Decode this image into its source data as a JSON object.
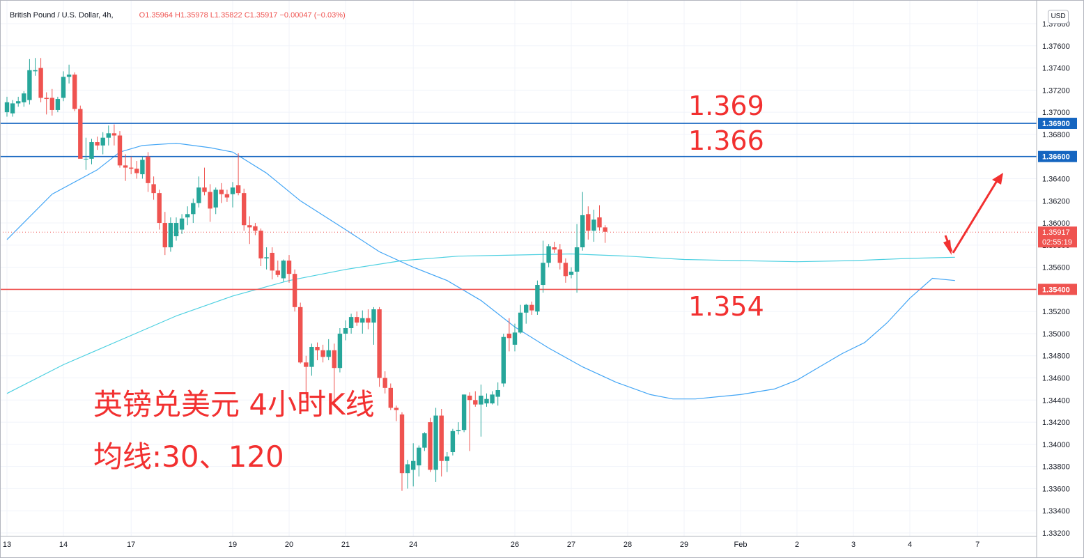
{
  "header": {
    "symbol": "British Pound / U.S. Dollar, 4h,",
    "ohlc": "O1.35964 H1.35978 L1.35822 C1.35917 −0.00047 (−0.03%)"
  },
  "currency_label": "USD",
  "colors": {
    "up": "#26a69a",
    "down": "#ef5350",
    "ma30": "#42a5f5",
    "ma120": "#4dd0e1",
    "resistance": "#1565c0",
    "support": "#ef5350",
    "annotation": "#f23030",
    "grid": "#f0f3fa"
  },
  "chart_data": {
    "type": "candlestick",
    "symbol": "GBP/USD",
    "interval": "4h",
    "y_axis": {
      "range": [
        1.332,
        1.378
      ],
      "ticks": [
        "1.37800",
        "1.37600",
        "1.37400",
        "1.37200",
        "1.37000",
        "1.36800",
        "1.36600",
        "1.36400",
        "1.36200",
        "1.36000",
        "1.35800",
        "1.35600",
        "1.35400",
        "1.35200",
        "1.35000",
        "1.34800",
        "1.34600",
        "1.34400",
        "1.34200",
        "1.34000",
        "1.33800",
        "1.33600",
        "1.33400",
        "1.33200"
      ],
      "tick_values": [
        1.378,
        1.376,
        1.374,
        1.372,
        1.37,
        1.368,
        1.366,
        1.364,
        1.362,
        1.36,
        1.358,
        1.356,
        1.354,
        1.352,
        1.35,
        1.348,
        1.346,
        1.344,
        1.342,
        1.34,
        1.338,
        1.336,
        1.334,
        1.332
      ]
    },
    "x_axis": {
      "labels": [
        "13",
        "14",
        "17",
        "19",
        "20",
        "21",
        "24",
        "26",
        "27",
        "28",
        "29",
        "Feb",
        "2",
        "3",
        "4",
        "7"
      ],
      "label_bars": [
        0,
        10,
        22,
        40,
        50,
        60,
        72,
        90,
        100,
        110,
        120,
        130,
        140,
        150,
        160,
        172
      ]
    },
    "candles": [
      {
        "o": 1.37,
        "h": 1.3714,
        "l": 1.3696,
        "c": 1.3709
      },
      {
        "o": 1.3699,
        "h": 1.3711,
        "l": 1.3696,
        "c": 1.3708
      },
      {
        "o": 1.3708,
        "h": 1.3714,
        "l": 1.3705,
        "c": 1.371
      },
      {
        "o": 1.3709,
        "h": 1.3719,
        "l": 1.3705,
        "c": 1.3717
      },
      {
        "o": 1.3711,
        "h": 1.3748,
        "l": 1.3707,
        "c": 1.3738
      },
      {
        "o": 1.3737,
        "h": 1.3749,
        "l": 1.3733,
        "c": 1.3738
      },
      {
        "o": 1.374,
        "h": 1.3749,
        "l": 1.3709,
        "c": 1.3713
      },
      {
        "o": 1.3713,
        "h": 1.3718,
        "l": 1.3698,
        "c": 1.3712
      },
      {
        "o": 1.3713,
        "h": 1.3721,
        "l": 1.3697,
        "c": 1.3702
      },
      {
        "o": 1.3702,
        "h": 1.3714,
        "l": 1.37,
        "c": 1.3712
      },
      {
        "o": 1.3713,
        "h": 1.3737,
        "l": 1.371,
        "c": 1.3732
      },
      {
        "o": 1.3732,
        "h": 1.3743,
        "l": 1.3726,
        "c": 1.3734
      },
      {
        "o": 1.3734,
        "h": 1.3736,
        "l": 1.3701,
        "c": 1.3703
      },
      {
        "o": 1.3703,
        "h": 1.3706,
        "l": 1.366,
        "c": 1.3658
      },
      {
        "o": 1.3658,
        "h": 1.3677,
        "l": 1.3648,
        "c": 1.3658
      },
      {
        "o": 1.3658,
        "h": 1.3676,
        "l": 1.3653,
        "c": 1.3673
      },
      {
        "o": 1.3673,
        "h": 1.3678,
        "l": 1.3666,
        "c": 1.367
      },
      {
        "o": 1.367,
        "h": 1.3682,
        "l": 1.3662,
        "c": 1.3677
      },
      {
        "o": 1.3677,
        "h": 1.3688,
        "l": 1.367,
        "c": 1.3681
      },
      {
        "o": 1.3681,
        "h": 1.3689,
        "l": 1.367,
        "c": 1.3679
      },
      {
        "o": 1.3679,
        "h": 1.3683,
        "l": 1.365,
        "c": 1.3652
      },
      {
        "o": 1.3652,
        "h": 1.3662,
        "l": 1.3638,
        "c": 1.365
      },
      {
        "o": 1.365,
        "h": 1.366,
        "l": 1.3644,
        "c": 1.3649
      },
      {
        "o": 1.3649,
        "h": 1.3656,
        "l": 1.364,
        "c": 1.3645
      },
      {
        "o": 1.3644,
        "h": 1.366,
        "l": 1.364,
        "c": 1.3657
      },
      {
        "o": 1.366,
        "h": 1.3664,
        "l": 1.3628,
        "c": 1.3636
      },
      {
        "o": 1.3635,
        "h": 1.3642,
        "l": 1.3621,
        "c": 1.3627
      },
      {
        "o": 1.3627,
        "h": 1.363,
        "l": 1.3594,
        "c": 1.36
      },
      {
        "o": 1.36,
        "h": 1.361,
        "l": 1.3571,
        "c": 1.3578
      },
      {
        "o": 1.3578,
        "h": 1.3605,
        "l": 1.3574,
        "c": 1.36
      },
      {
        "o": 1.3588,
        "h": 1.3605,
        "l": 1.3584,
        "c": 1.36
      },
      {
        "o": 1.3594,
        "h": 1.3608,
        "l": 1.359,
        "c": 1.3604
      },
      {
        "o": 1.3605,
        "h": 1.3615,
        "l": 1.3598,
        "c": 1.3608
      },
      {
        "o": 1.3608,
        "h": 1.3622,
        "l": 1.36,
        "c": 1.3618
      },
      {
        "o": 1.3618,
        "h": 1.3642,
        "l": 1.3614,
        "c": 1.3632
      },
      {
        "o": 1.3632,
        "h": 1.365,
        "l": 1.3625,
        "c": 1.3628
      },
      {
        "o": 1.3628,
        "h": 1.3635,
        "l": 1.3601,
        "c": 1.3613
      },
      {
        "o": 1.3614,
        "h": 1.3632,
        "l": 1.3608,
        "c": 1.363
      },
      {
        "o": 1.363,
        "h": 1.3636,
        "l": 1.3618,
        "c": 1.3626
      },
      {
        "o": 1.3626,
        "h": 1.363,
        "l": 1.3619,
        "c": 1.3623
      },
      {
        "o": 1.3626,
        "h": 1.3637,
        "l": 1.3614,
        "c": 1.3632
      },
      {
        "o": 1.3634,
        "h": 1.3663,
        "l": 1.3625,
        "c": 1.3627
      },
      {
        "o": 1.3627,
        "h": 1.3631,
        "l": 1.3593,
        "c": 1.3598
      },
      {
        "o": 1.3598,
        "h": 1.3606,
        "l": 1.3581,
        "c": 1.3596
      },
      {
        "o": 1.3597,
        "h": 1.36,
        "l": 1.3589,
        "c": 1.3593
      },
      {
        "o": 1.3593,
        "h": 1.3595,
        "l": 1.3561,
        "c": 1.3568
      },
      {
        "o": 1.3568,
        "h": 1.3578,
        "l": 1.3558,
        "c": 1.3569
      },
      {
        "o": 1.3573,
        "h": 1.3578,
        "l": 1.3549,
        "c": 1.3557
      },
      {
        "o": 1.3557,
        "h": 1.3566,
        "l": 1.3551,
        "c": 1.3553
      },
      {
        "o": 1.355,
        "h": 1.3567,
        "l": 1.3547,
        "c": 1.3566
      },
      {
        "o": 1.3566,
        "h": 1.3571,
        "l": 1.3546,
        "c": 1.3554
      },
      {
        "o": 1.3554,
        "h": 1.3558,
        "l": 1.352,
        "c": 1.3524
      },
      {
        "o": 1.3524,
        "h": 1.3528,
        "l": 1.3473,
        "c": 1.3474
      },
      {
        "o": 1.3474,
        "h": 1.348,
        "l": 1.3442,
        "c": 1.347
      },
      {
        "o": 1.347,
        "h": 1.3491,
        "l": 1.3462,
        "c": 1.3488
      },
      {
        "o": 1.3488,
        "h": 1.3492,
        "l": 1.3476,
        "c": 1.3485
      },
      {
        "o": 1.3485,
        "h": 1.349,
        "l": 1.3474,
        "c": 1.3479
      },
      {
        "o": 1.3479,
        "h": 1.3495,
        "l": 1.3476,
        "c": 1.3485
      },
      {
        "o": 1.3485,
        "h": 1.3491,
        "l": 1.3436,
        "c": 1.3469
      },
      {
        "o": 1.3469,
        "h": 1.3505,
        "l": 1.3465,
        "c": 1.35
      },
      {
        "o": 1.35,
        "h": 1.3512,
        "l": 1.3494,
        "c": 1.3505
      },
      {
        "o": 1.3505,
        "h": 1.3518,
        "l": 1.35,
        "c": 1.3515
      },
      {
        "o": 1.3515,
        "h": 1.352,
        "l": 1.3507,
        "c": 1.351
      },
      {
        "o": 1.351,
        "h": 1.3521,
        "l": 1.35,
        "c": 1.3514
      },
      {
        "o": 1.3514,
        "h": 1.3522,
        "l": 1.3504,
        "c": 1.351
      },
      {
        "o": 1.351,
        "h": 1.3524,
        "l": 1.349,
        "c": 1.3522
      },
      {
        "o": 1.3522,
        "h": 1.3524,
        "l": 1.3452,
        "c": 1.346
      },
      {
        "o": 1.346,
        "h": 1.3466,
        "l": 1.3446,
        "c": 1.3451
      },
      {
        "o": 1.3451,
        "h": 1.3455,
        "l": 1.3431,
        "c": 1.3433
      },
      {
        "o": 1.3433,
        "h": 1.3435,
        "l": 1.3421,
        "c": 1.3431
      },
      {
        "o": 1.3427,
        "h": 1.3429,
        "l": 1.3358,
        "c": 1.3374
      },
      {
        "o": 1.3374,
        "h": 1.3386,
        "l": 1.336,
        "c": 1.3382
      },
      {
        "o": 1.3377,
        "h": 1.3401,
        "l": 1.3362,
        "c": 1.3385
      },
      {
        "o": 1.3381,
        "h": 1.3399,
        "l": 1.3371,
        "c": 1.3397
      },
      {
        "o": 1.3397,
        "h": 1.3411,
        "l": 1.3394,
        "c": 1.341
      },
      {
        "o": 1.342,
        "h": 1.3424,
        "l": 1.3375,
        "c": 1.3377
      },
      {
        "o": 1.3377,
        "h": 1.3433,
        "l": 1.3366,
        "c": 1.3426
      },
      {
        "o": 1.3426,
        "h": 1.3432,
        "l": 1.3371,
        "c": 1.3385
      },
      {
        "o": 1.3385,
        "h": 1.3393,
        "l": 1.3375,
        "c": 1.3389
      },
      {
        "o": 1.3393,
        "h": 1.3414,
        "l": 1.339,
        "c": 1.3412
      },
      {
        "o": 1.3412,
        "h": 1.342,
        "l": 1.3409,
        "c": 1.3413
      },
      {
        "o": 1.3413,
        "h": 1.3445,
        "l": 1.3411,
        "c": 1.3445
      },
      {
        "o": 1.3444,
        "h": 1.3447,
        "l": 1.3394,
        "c": 1.344
      },
      {
        "o": 1.344,
        "h": 1.3448,
        "l": 1.3434,
        "c": 1.3436
      },
      {
        "o": 1.3436,
        "h": 1.3454,
        "l": 1.3407,
        "c": 1.3444
      },
      {
        "o": 1.3437,
        "h": 1.3446,
        "l": 1.3434,
        "c": 1.3441
      },
      {
        "o": 1.3437,
        "h": 1.3448,
        "l": 1.3436,
        "c": 1.3445
      },
      {
        "o": 1.3443,
        "h": 1.3456,
        "l": 1.3435,
        "c": 1.3449
      },
      {
        "o": 1.3455,
        "h": 1.35,
        "l": 1.3452,
        "c": 1.3497
      },
      {
        "o": 1.35,
        "h": 1.3514,
        "l": 1.3484,
        "c": 1.3496
      },
      {
        "o": 1.349,
        "h": 1.3509,
        "l": 1.3484,
        "c": 1.3501
      },
      {
        "o": 1.3501,
        "h": 1.3526,
        "l": 1.35,
        "c": 1.3519
      },
      {
        "o": 1.3519,
        "h": 1.3527,
        "l": 1.3509,
        "c": 1.3526
      },
      {
        "o": 1.3526,
        "h": 1.3529,
        "l": 1.3517,
        "c": 1.3521
      },
      {
        "o": 1.352,
        "h": 1.3548,
        "l": 1.3517,
        "c": 1.3544
      },
      {
        "o": 1.3544,
        "h": 1.3584,
        "l": 1.3537,
        "c": 1.3564
      },
      {
        "o": 1.3564,
        "h": 1.3581,
        "l": 1.356,
        "c": 1.3579
      },
      {
        "o": 1.3578,
        "h": 1.3583,
        "l": 1.3573,
        "c": 1.3576
      },
      {
        "o": 1.3576,
        "h": 1.3581,
        "l": 1.3558,
        "c": 1.3564
      },
      {
        "o": 1.3564,
        "h": 1.3568,
        "l": 1.3546,
        "c": 1.3552
      },
      {
        "o": 1.3553,
        "h": 1.356,
        "l": 1.355,
        "c": 1.3556
      },
      {
        "o": 1.3556,
        "h": 1.3599,
        "l": 1.3537,
        "c": 1.3578
      },
      {
        "o": 1.3578,
        "h": 1.3628,
        "l": 1.3575,
        "c": 1.3607
      },
      {
        "o": 1.3608,
        "h": 1.3615,
        "l": 1.3585,
        "c": 1.3593
      },
      {
        "o": 1.3593,
        "h": 1.3612,
        "l": 1.3583,
        "c": 1.3603
      },
      {
        "o": 1.3605,
        "h": 1.3616,
        "l": 1.3593,
        "c": 1.3596
      },
      {
        "o": 1.3596,
        "h": 1.3598,
        "l": 1.3582,
        "c": 1.3592
      }
    ],
    "ma30": {
      "bars": [
        0,
        8,
        16,
        20,
        24,
        30,
        36,
        40,
        46,
        52,
        60,
        66,
        72,
        78,
        84,
        90,
        96,
        102,
        108,
        114,
        118,
        122,
        126,
        130,
        136,
        140,
        144,
        148,
        152,
        156,
        160,
        164,
        168
      ],
      "values": [
        1.3585,
        1.3626,
        1.3648,
        1.3664,
        1.367,
        1.3672,
        1.3668,
        1.3664,
        1.3645,
        1.362,
        1.3594,
        1.3574,
        1.356,
        1.3548,
        1.353,
        1.3506,
        1.3487,
        1.347,
        1.3456,
        1.3445,
        1.3441,
        1.3441,
        1.3443,
        1.3445,
        1.345,
        1.3458,
        1.347,
        1.3482,
        1.3492,
        1.351,
        1.3532,
        1.355,
        1.3548
      ]
    },
    "ma120": {
      "bars": [
        0,
        10,
        20,
        30,
        40,
        50,
        60,
        70,
        80,
        90,
        100,
        110,
        120,
        130,
        140,
        150,
        160,
        168
      ],
      "values": [
        1.3446,
        1.3472,
        1.3494,
        1.3516,
        1.3534,
        1.3548,
        1.3558,
        1.3566,
        1.357,
        1.3571,
        1.3572,
        1.357,
        1.3567,
        1.3566,
        1.3565,
        1.3566,
        1.3568,
        1.3569
      ]
    },
    "horizontal_lines": [
      {
        "value": 1.369,
        "label": "1.36900",
        "kind": "resistance"
      },
      {
        "value": 1.366,
        "label": "1.36600",
        "kind": "resistance"
      },
      {
        "value": 1.354,
        "label": "1.35400",
        "kind": "support"
      }
    ],
    "current_price": {
      "value": 1.35917,
      "label": "1.35917",
      "countdown": "02:55:19"
    },
    "annotations": {
      "level_labels": [
        "1.369",
        "1.366",
        "1.354"
      ],
      "title": "英镑兑美元 4小时K线",
      "subtitle": "均线:30、120"
    }
  }
}
